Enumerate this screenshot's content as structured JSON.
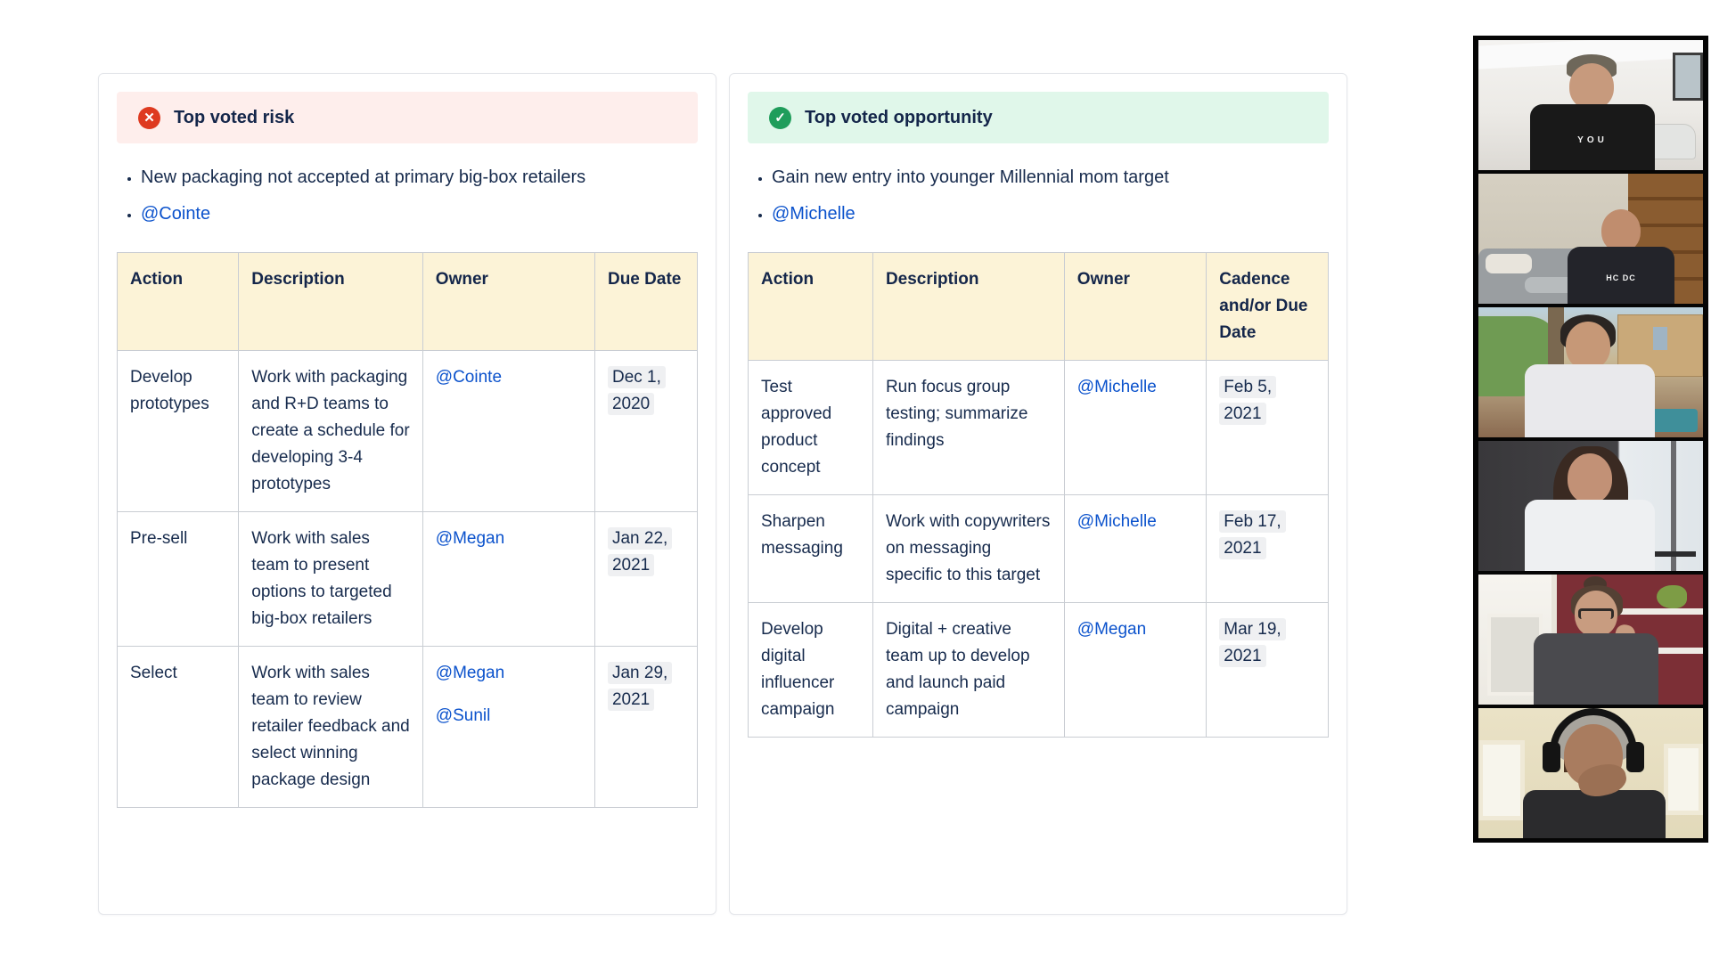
{
  "colors": {
    "text_navy": "#172b4d",
    "link_blue": "#0b52cc",
    "risk_banner_bg": "#feeeec",
    "risk_icon": "#de3a20",
    "opportunity_banner_bg": "#e0f7ea",
    "opportunity_icon": "#1f9d5b",
    "table_header_bg": "#fcf3d7",
    "date_lozenge_bg": "#eff0f2"
  },
  "risk_panel": {
    "banner": {
      "title": "Top voted risk",
      "icon": "error-icon",
      "icon_glyph": "✕"
    },
    "bullet_text": "New packaging not accepted at primary big-box retailers",
    "bullet_mention": "@Cointe",
    "table": {
      "headers": {
        "action": "Action",
        "description": "Description",
        "owner": "Owner",
        "due": "Due Date"
      },
      "rows": [
        {
          "action": "Develop prototypes",
          "description": "Work with packaging and R+D teams to create a schedule for developing 3-4 prototypes",
          "owners": [
            "@Cointe"
          ],
          "date": "Dec 1, 2020"
        },
        {
          "action": "Pre-sell",
          "description": "Work with sales team to present options to targeted big-box retailers",
          "owners": [
            "@Megan"
          ],
          "date": "Jan 22, 2021"
        },
        {
          "action": "Select",
          "description": "Work with sales team to review retailer feedback and select winning package design",
          "owners": [
            "@Megan",
            "@Sunil"
          ],
          "date": "Jan 29, 2021"
        }
      ]
    }
  },
  "opportunity_panel": {
    "banner": {
      "title": "Top voted opportunity",
      "icon": "success-icon",
      "icon_glyph": "✓"
    },
    "bullet_text": "Gain new entry into younger Millennial mom target",
    "bullet_mention": "@Michelle",
    "table": {
      "headers": {
        "action": "Action",
        "description": "Description",
        "owner": "Owner",
        "due": "Cadence and/or Due Date"
      },
      "rows": [
        {
          "action": "Test approved product concept",
          "description": "Run focus group testing; summarize findings",
          "owners": [
            "@Michelle"
          ],
          "date": "Feb 5, 2021"
        },
        {
          "action": "Sharpen messaging",
          "description": "Work with copywriters on messaging specific to this target",
          "owners": [
            "@Michelle"
          ],
          "date": "Feb 17, 2021"
        },
        {
          "action": "Develop digital influencer campaign",
          "description": "Digital + creative team up to develop and launch paid campaign",
          "owners": [
            "@Megan"
          ],
          "date": "Mar 19, 2021"
        }
      ]
    }
  },
  "video_call": {
    "participants": [
      {
        "description": "man with cap in bright living room",
        "shirt_text": "YOU"
      },
      {
        "description": "balding man by couch and wooden shelves",
        "shirt_text": "HC DC"
      },
      {
        "description": "dark-haired man outdoors by palm tree",
        "shirt_text": ""
      },
      {
        "description": "woman in white hoodie, dark room with window",
        "shirt_text": ""
      },
      {
        "description": "woman with glasses by maroon wall shelves",
        "shirt_text": ""
      },
      {
        "description": "person with headphones, hand over mouth",
        "shirt_text": ""
      }
    ]
  }
}
